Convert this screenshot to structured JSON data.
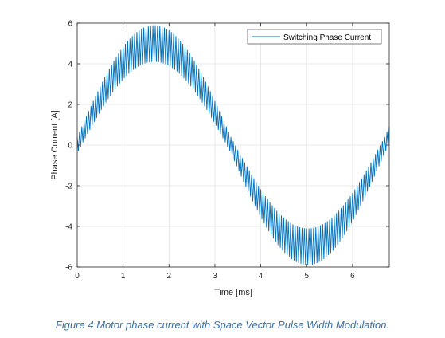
{
  "caption": "Figure 4 Motor phase current with Space Vector Pulse Width Modulation.",
  "colors": {
    "series": "#0072bd",
    "grid": "#e3e3e3",
    "axis": "#262626",
    "caption": "#3a6ea5"
  },
  "chart_data": {
    "type": "line",
    "title": "",
    "xlabel": "Time [ms]",
    "ylabel": "Phase Current [A]",
    "xlim": [
      0,
      6.8
    ],
    "ylim": [
      -6,
      6
    ],
    "xticks": [
      0,
      1,
      2,
      3,
      4,
      5,
      6
    ],
    "yticks": [
      -6,
      -4,
      -2,
      0,
      2,
      4,
      6
    ],
    "grid": true,
    "legend_position": "top-right",
    "series": [
      {
        "name": "Switching Phase Current",
        "color": "#0072bd",
        "fundamental": {
          "amplitude_A": 5.0,
          "period_ms": 6.7,
          "phase_deg": 0
        },
        "ripple": {
          "peak_to_peak_A_at_peak": 1.8,
          "peak_to_peak_A_at_zero": 0.8,
          "switching_period_ms": 0.05
        },
        "sample_points": [
          {
            "x": 0.0,
            "y": 0.0
          },
          {
            "x": 0.84,
            "y": 3.5
          },
          {
            "x": 1.675,
            "y": 5.0
          },
          {
            "x": 2.51,
            "y": 3.5
          },
          {
            "x": 3.35,
            "y": 0.0
          },
          {
            "x": 4.19,
            "y": -3.5
          },
          {
            "x": 5.025,
            "y": -5.0
          },
          {
            "x": 5.86,
            "y": -3.5
          },
          {
            "x": 6.7,
            "y": 0.0
          }
        ]
      }
    ]
  }
}
